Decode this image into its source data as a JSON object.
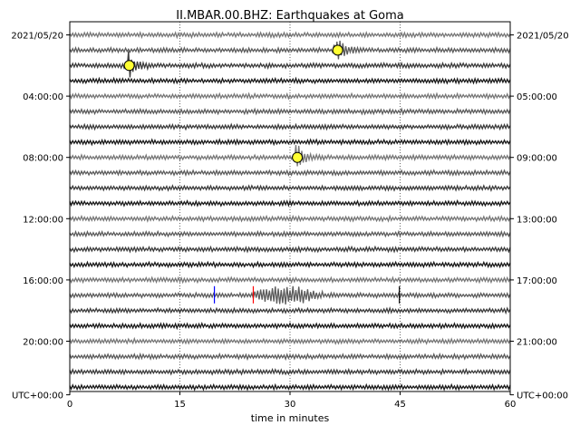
{
  "chart_data": {
    "type": "line",
    "title": "II.MBAR.00.BHZ: Earthquakes at Goma",
    "xlabel": "time in minutes",
    "xlim": [
      0,
      60
    ],
    "x_ticks": [
      "0",
      "15",
      "30",
      "45",
      "60"
    ],
    "grid_x_minutes": [
      15,
      30,
      45
    ],
    "trace_count": 24,
    "trace_colors": [
      "#777777",
      "#5c5c5c",
      "#3c3c3c",
      "#1a1a1a"
    ],
    "left_labels": [
      {
        "row": 0,
        "text": "2021/05/20"
      },
      {
        "row": 4,
        "text": "04:00:00"
      },
      {
        "row": 8,
        "text": "08:00:00"
      },
      {
        "row": 12,
        "text": "12:00:00"
      },
      {
        "row": 16,
        "text": "16:00:00"
      },
      {
        "row": 20,
        "text": "20:00:00"
      },
      {
        "row": 23.5,
        "text": "UTC+00:00"
      }
    ],
    "right_labels": [
      {
        "row": 0,
        "text": "2021/05/20"
      },
      {
        "row": 4,
        "text": "05:00:00"
      },
      {
        "row": 8,
        "text": "09:00:00"
      },
      {
        "row": 12,
        "text": "13:00:00"
      },
      {
        "row": 16,
        "text": "17:00:00"
      },
      {
        "row": 20,
        "text": "21:00:00"
      },
      {
        "row": 23.5,
        "text": "UTC+00:00"
      }
    ],
    "events": [
      {
        "row": 1,
        "minute": 36.5
      },
      {
        "row": 2,
        "minute": 8.1
      },
      {
        "row": 8,
        "minute": 31
      }
    ],
    "large_event": {
      "row": 17,
      "start_minute": 25,
      "end_minute": 44
    },
    "phase_picks": [
      {
        "row": 17,
        "minute": 19.7,
        "color": "#0000ff"
      },
      {
        "row": 17,
        "minute": 25.0,
        "color": "#ff0000"
      },
      {
        "row": 17,
        "minute": 44.9,
        "color": "#000000"
      }
    ]
  }
}
